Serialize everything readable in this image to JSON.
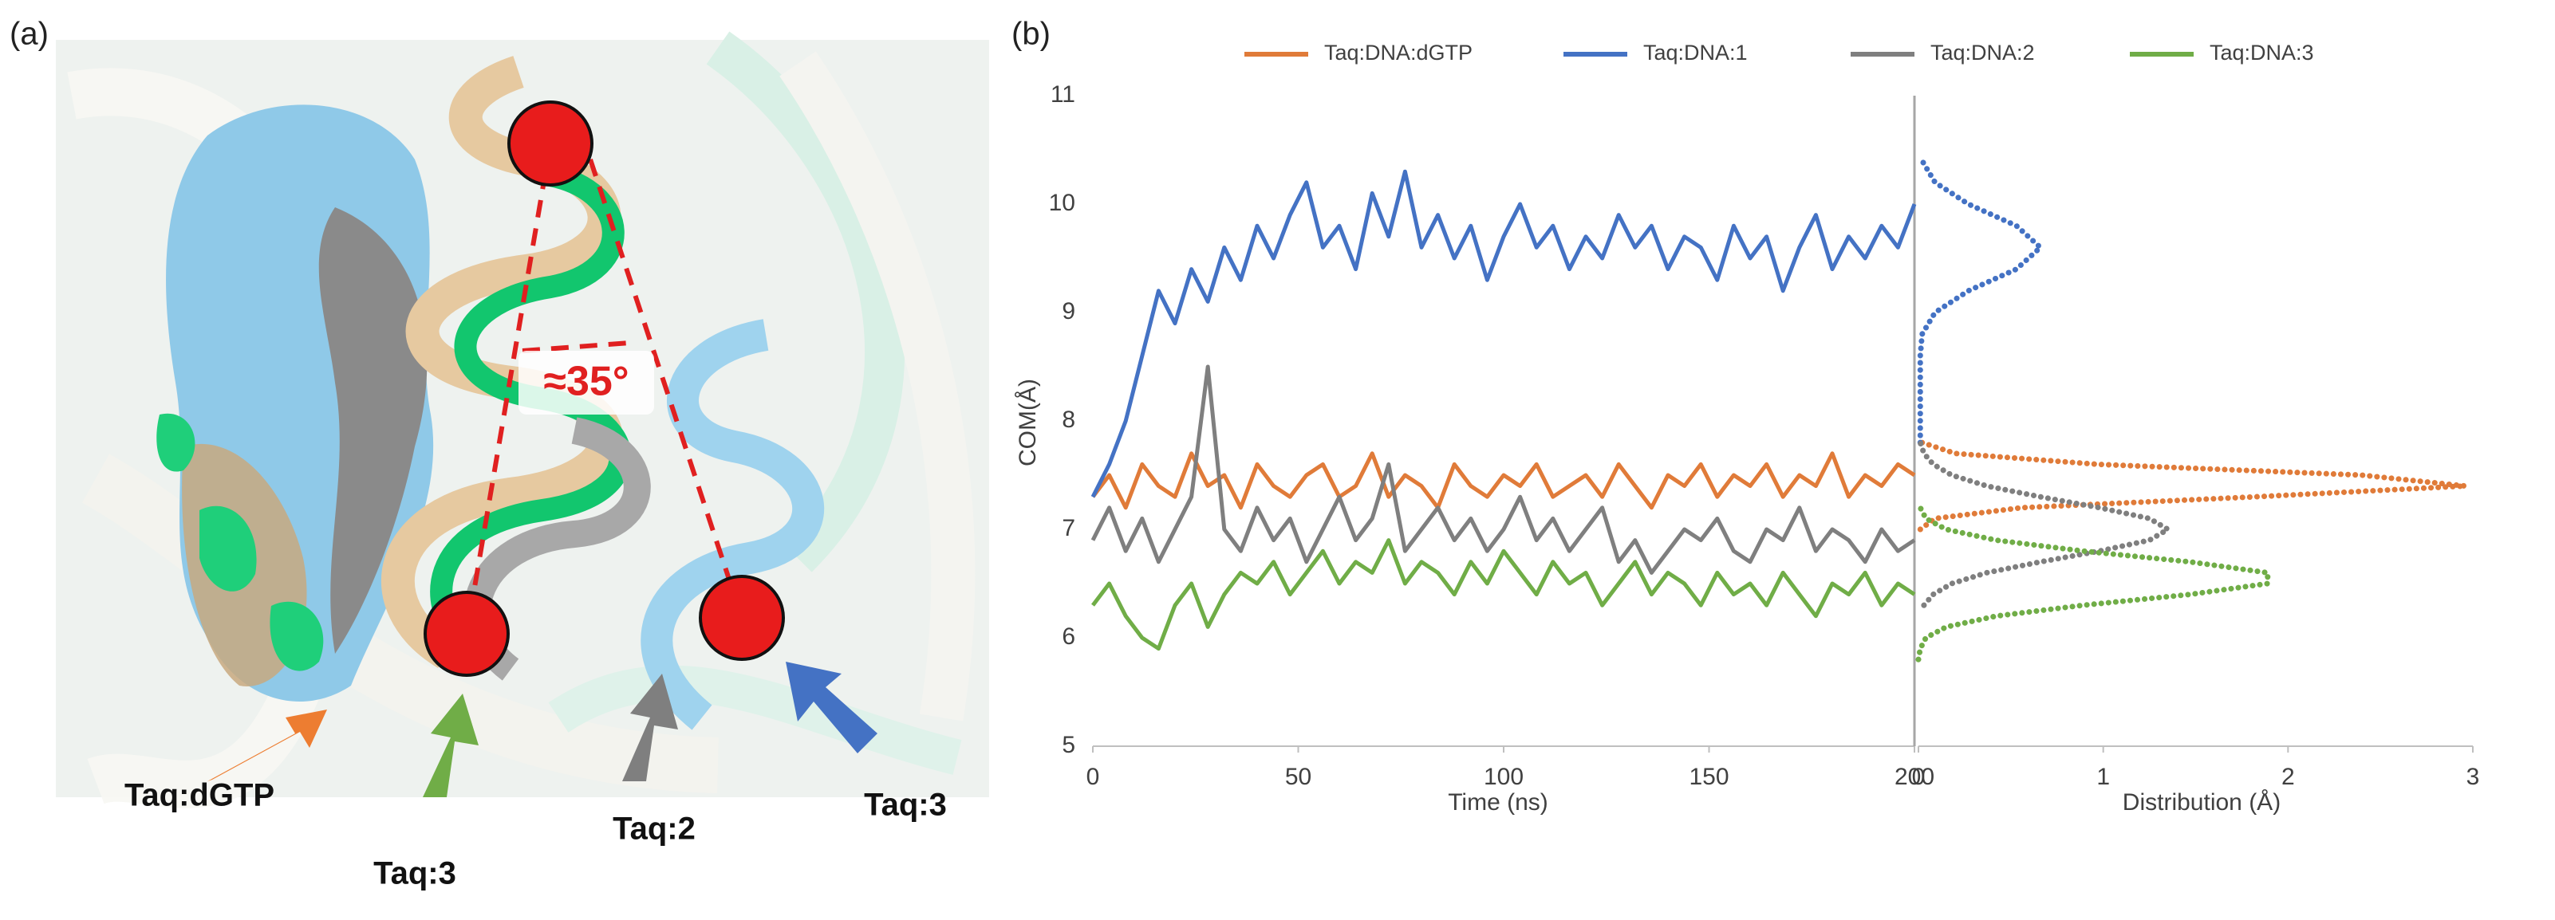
{
  "panel_a": {
    "label": "(a)",
    "angle": "≈35°",
    "labels": [
      "Taq:dGTP",
      "Taq:3",
      "Taq:2",
      "Taq:3"
    ]
  },
  "panel_b_label": "(b)",
  "chart_data": [
    {
      "type": "line",
      "xlabel": "Time (ns)",
      "ylabel": "COM(Å)",
      "xlim": [
        0,
        200
      ],
      "xticks": [
        0,
        50,
        100,
        150,
        200
      ],
      "ylim": [
        5,
        11
      ],
      "yticks": [
        5,
        6,
        7,
        8,
        9,
        10,
        11
      ],
      "legend": "top",
      "x": [
        0,
        4,
        8,
        12,
        16,
        20,
        24,
        28,
        32,
        36,
        40,
        44,
        48,
        52,
        56,
        60,
        64,
        68,
        72,
        76,
        80,
        84,
        88,
        92,
        96,
        100,
        104,
        108,
        112,
        116,
        120,
        124,
        128,
        132,
        136,
        140,
        144,
        148,
        152,
        156,
        160,
        164,
        168,
        172,
        176,
        180,
        184,
        188,
        192,
        196,
        200
      ],
      "series": [
        {
          "name": "Taq:DNA:dGTP",
          "color": "#e07b39",
          "values": [
            7.3,
            7.5,
            7.2,
            7.6,
            7.4,
            7.3,
            7.7,
            7.4,
            7.5,
            7.2,
            7.6,
            7.4,
            7.3,
            7.5,
            7.6,
            7.3,
            7.4,
            7.7,
            7.3,
            7.5,
            7.4,
            7.2,
            7.6,
            7.4,
            7.3,
            7.5,
            7.4,
            7.6,
            7.3,
            7.4,
            7.5,
            7.3,
            7.6,
            7.4,
            7.2,
            7.5,
            7.4,
            7.6,
            7.3,
            7.5,
            7.4,
            7.6,
            7.3,
            7.5,
            7.4,
            7.7,
            7.3,
            7.5,
            7.4,
            7.6,
            7.5
          ]
        },
        {
          "name": "Taq:DNA:1",
          "color": "#4472c4",
          "values": [
            7.3,
            7.6,
            8.0,
            8.6,
            9.2,
            8.9,
            9.4,
            9.1,
            9.6,
            9.3,
            9.8,
            9.5,
            9.9,
            10.2,
            9.6,
            9.8,
            9.4,
            10.1,
            9.7,
            10.3,
            9.6,
            9.9,
            9.5,
            9.8,
            9.3,
            9.7,
            10.0,
            9.6,
            9.8,
            9.4,
            9.7,
            9.5,
            9.9,
            9.6,
            9.8,
            9.4,
            9.7,
            9.6,
            9.3,
            9.8,
            9.5,
            9.7,
            9.2,
            9.6,
            9.9,
            9.4,
            9.7,
            9.5,
            9.8,
            9.6,
            10.0
          ]
        },
        {
          "name": "Taq:DNA:2",
          "color": "#7f7f7f",
          "values": [
            6.9,
            7.2,
            6.8,
            7.1,
            6.7,
            7.0,
            7.3,
            8.5,
            7.0,
            6.8,
            7.2,
            6.9,
            7.1,
            6.7,
            7.0,
            7.3,
            6.9,
            7.1,
            7.6,
            6.8,
            7.0,
            7.2,
            6.9,
            7.1,
            6.8,
            7.0,
            7.3,
            6.9,
            7.1,
            6.8,
            7.0,
            7.2,
            6.7,
            6.9,
            6.6,
            6.8,
            7.0,
            6.9,
            7.1,
            6.8,
            6.7,
            7.0,
            6.9,
            7.2,
            6.8,
            7.0,
            6.9,
            6.7,
            7.0,
            6.8,
            6.9
          ]
        },
        {
          "name": "Taq:DNA:3",
          "color": "#70ad47",
          "values": [
            6.3,
            6.5,
            6.2,
            6.0,
            5.9,
            6.3,
            6.5,
            6.1,
            6.4,
            6.6,
            6.5,
            6.7,
            6.4,
            6.6,
            6.8,
            6.5,
            6.7,
            6.6,
            6.9,
            6.5,
            6.7,
            6.6,
            6.4,
            6.7,
            6.5,
            6.8,
            6.6,
            6.4,
            6.7,
            6.5,
            6.6,
            6.3,
            6.5,
            6.7,
            6.4,
            6.6,
            6.5,
            6.3,
            6.6,
            6.4,
            6.5,
            6.3,
            6.6,
            6.4,
            6.2,
            6.5,
            6.4,
            6.6,
            6.3,
            6.5,
            6.4
          ]
        }
      ]
    },
    {
      "type": "distribution",
      "xlabel": "Distribution (Å)",
      "xlim": [
        0,
        3
      ],
      "xticks": [
        0,
        1,
        2,
        3
      ],
      "ylim": [
        5,
        11
      ],
      "series": [
        {
          "color": "#e07b39",
          "y": [
            7.0,
            7.1,
            7.2,
            7.3,
            7.4,
            7.5,
            7.6,
            7.7,
            7.8
          ],
          "values": [
            0.01,
            0.09,
            0.56,
            1.82,
            2.96,
            2.4,
            0.97,
            0.2,
            0.02
          ]
        },
        {
          "color": "#4472c4",
          "y": [
            7.8,
            8.0,
            8.2,
            8.4,
            8.6,
            8.8,
            9.0,
            9.2,
            9.4,
            9.6,
            9.8,
            10.0,
            10.2,
            10.4
          ],
          "values": [
            0.01,
            0.01,
            0.01,
            0.01,
            0.01,
            0.02,
            0.09,
            0.27,
            0.53,
            0.66,
            0.53,
            0.27,
            0.09,
            0.02
          ]
        },
        {
          "color": "#7f7f7f",
          "y": [
            6.3,
            6.4,
            6.5,
            6.6,
            6.7,
            6.8,
            6.9,
            7.0,
            7.1,
            7.2,
            7.3,
            7.4,
            7.5,
            7.6,
            7.7,
            7.8
          ],
          "values": [
            0.03,
            0.08,
            0.18,
            0.37,
            0.66,
            0.98,
            1.25,
            1.35,
            1.25,
            0.98,
            0.66,
            0.37,
            0.18,
            0.08,
            0.03,
            0.01
          ]
        },
        {
          "color": "#70ad47",
          "y": [
            5.8,
            5.9,
            6.0,
            6.1,
            6.2,
            6.3,
            6.4,
            6.5,
            6.6,
            6.7,
            6.8,
            6.9,
            7.0,
            7.1,
            7.2
          ],
          "values": [
            0,
            0.01,
            0.04,
            0.15,
            0.42,
            0.89,
            1.47,
            1.89,
            1.89,
            1.47,
            0.89,
            0.42,
            0.15,
            0.04,
            0.01
          ]
        }
      ]
    }
  ]
}
